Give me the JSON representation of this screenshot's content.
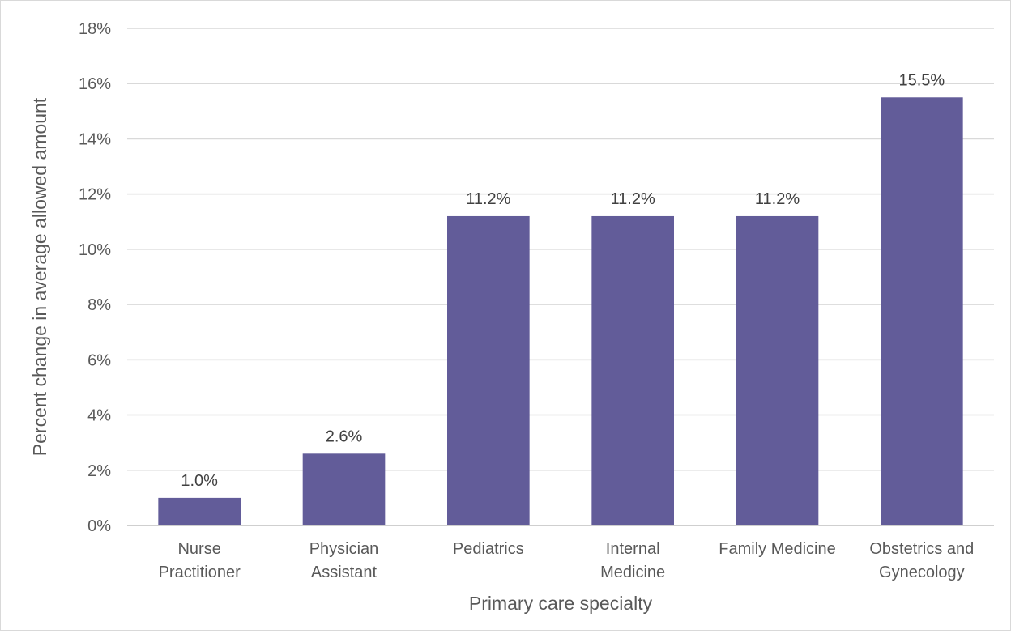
{
  "chart_data": {
    "type": "bar",
    "title": "",
    "xlabel": "Primary care specialty",
    "ylabel": "Percent change in average allowed amount",
    "categories": [
      [
        "Nurse",
        "Practitioner"
      ],
      [
        "Physician",
        "Assistant"
      ],
      [
        "Pediatrics"
      ],
      [
        "Internal",
        "Medicine"
      ],
      [
        "Family Medicine"
      ],
      [
        "Obstetrics and",
        "Gynecology"
      ]
    ],
    "values": [
      1.0,
      2.6,
      11.2,
      11.2,
      11.2,
      15.5
    ],
    "data_labels": [
      "1.0%",
      "2.6%",
      "11.2%",
      "11.2%",
      "11.2%",
      "15.5%"
    ],
    "ylim": [
      0,
      18
    ],
    "yticks": [
      0,
      2,
      4,
      6,
      8,
      10,
      12,
      14,
      16,
      18
    ],
    "ytick_labels": [
      "0%",
      "2%",
      "4%",
      "6%",
      "8%",
      "10%",
      "12%",
      "14%",
      "16%",
      "18%"
    ],
    "grid": true,
    "legend": "none",
    "bar_color": "#625c99"
  }
}
